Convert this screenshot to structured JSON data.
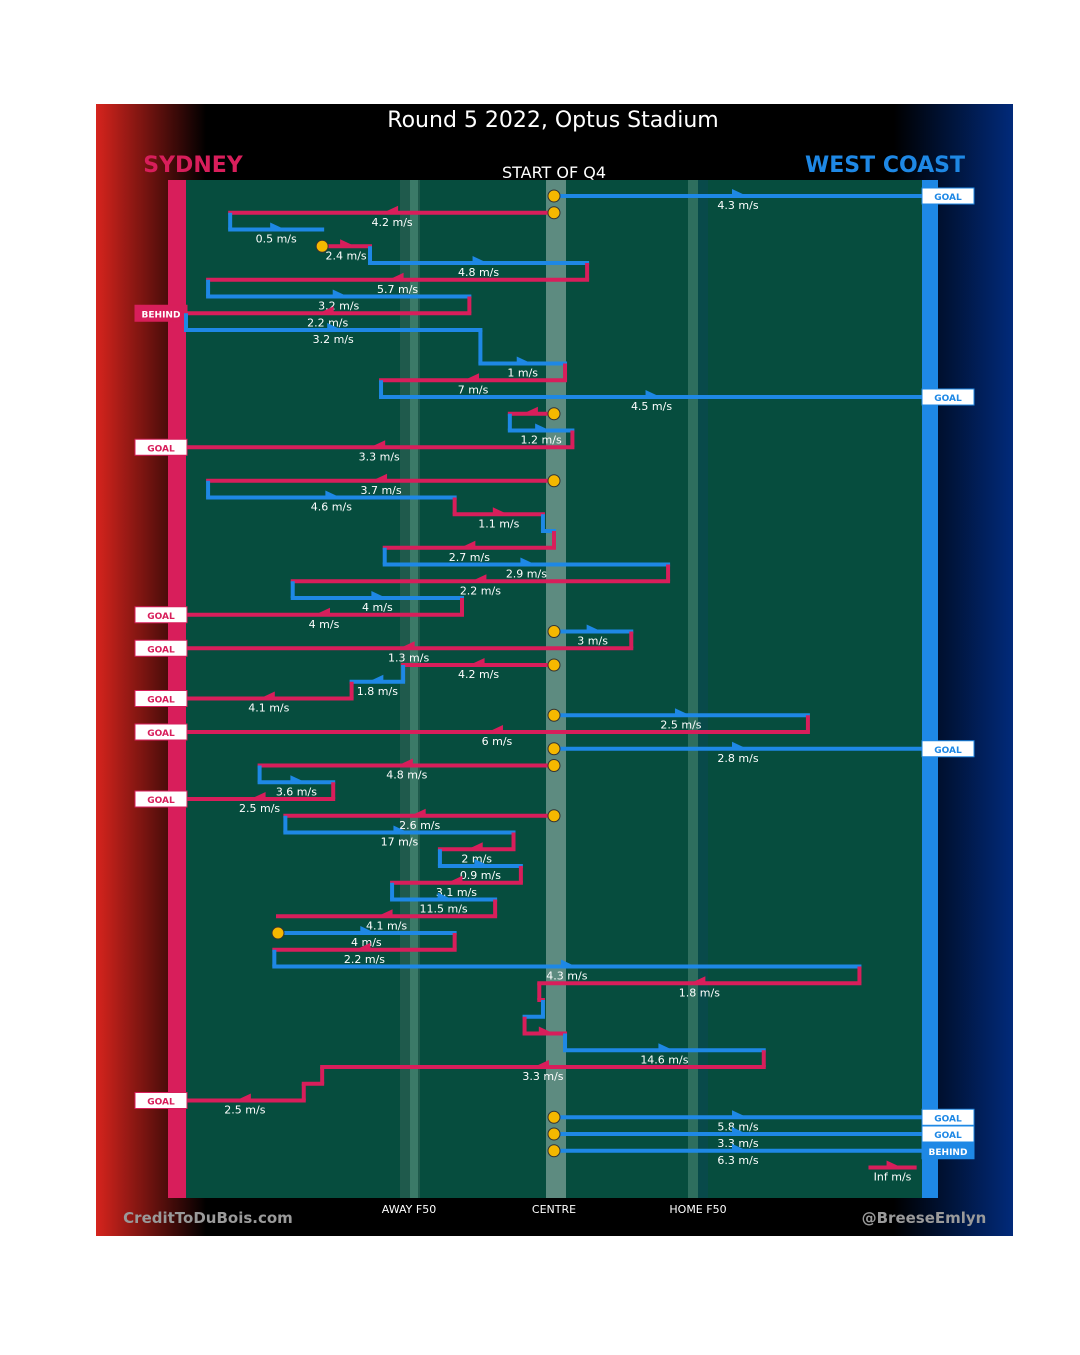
{
  "chart_data": {
    "type": "possession-chain",
    "title": "Round 5 2022, Optus Stadium",
    "subtitle": "START OF Q4",
    "teams": {
      "left": {
        "name": "SYDNEY",
        "color": "#d81e5b"
      },
      "right": {
        "name": "WEST COAST",
        "color": "#1e88e5"
      }
    },
    "axis_labels": [
      "AWAY F50",
      "CENTRE",
      "HOME F50"
    ],
    "credits": {
      "left": "CreditToDuBois.com",
      "right": "@BreeseEmlyn"
    },
    "x_domain": [
      -1,
      1
    ],
    "chains": [
      {
        "team": "west",
        "start": 0,
        "end": 1,
        "row": 1,
        "speed": "4.3 m/s",
        "outcome": "GOAL",
        "bounce": true
      },
      {
        "team": "syd",
        "start": 0,
        "end": -0.88,
        "row": 2,
        "speed": "4.2 m/s",
        "bounce": true
      },
      {
        "team": "west",
        "start": -0.88,
        "end": -0.63,
        "row": 3,
        "speed": "0.5 m/s"
      },
      {
        "team": "syd",
        "start": -0.63,
        "end": -0.5,
        "row": 4,
        "speed": "2.4 m/s",
        "bounce": true
      },
      {
        "team": "west",
        "start": -0.5,
        "end": 0.09,
        "row": 5,
        "speed": "4.8 m/s"
      },
      {
        "team": "syd",
        "start": 0.09,
        "end": -0.94,
        "row": 6,
        "speed": "5.7 m/s"
      },
      {
        "team": "west",
        "start": -0.94,
        "end": -0.23,
        "row": 7,
        "speed": "3.2 m/s"
      },
      {
        "team": "syd",
        "start": -0.23,
        "end": -1,
        "row": 8,
        "speed": "2.2 m/s",
        "outcome": "BEHIND"
      },
      {
        "team": "west",
        "start": -1,
        "end": -0.2,
        "row": 9,
        "speed": "3.2 m/s"
      },
      {
        "team": "west",
        "start": -0.2,
        "end": 0.03,
        "row": 11,
        "speed": "1 m/s"
      },
      {
        "team": "syd",
        "start": 0.03,
        "end": -0.47,
        "row": 12,
        "speed": "7 m/s"
      },
      {
        "team": "west",
        "start": -0.47,
        "end": 1,
        "row": 13,
        "speed": "4.5 m/s",
        "outcome": "GOAL"
      },
      {
        "team": "syd",
        "start": 0,
        "end": -0.12,
        "row": 14,
        "speed": "",
        "bounce": true
      },
      {
        "team": "west",
        "start": -0.12,
        "end": 0.05,
        "row": 15,
        "speed": "1.2 m/s"
      },
      {
        "team": "syd",
        "start": 0.05,
        "end": -1,
        "row": 16,
        "speed": "3.3 m/s",
        "outcome": "GOAL"
      },
      {
        "team": "syd",
        "start": 0,
        "end": -0.94,
        "row": 18,
        "speed": "3.7 m/s",
        "bounce": true
      },
      {
        "team": "west",
        "start": -0.94,
        "end": -0.27,
        "row": 19,
        "speed": "4.6 m/s"
      },
      {
        "team": "syd",
        "start": -0.27,
        "end": -0.03,
        "row": 20,
        "speed": "1.1 m/s"
      },
      {
        "team": "west",
        "start": -0.03,
        "end": 0,
        "row": 21,
        "speed": ""
      },
      {
        "team": "syd",
        "start": 0,
        "end": -0.46,
        "row": 22,
        "speed": "2.7 m/s"
      },
      {
        "team": "west",
        "start": -0.46,
        "end": 0.31,
        "row": 23,
        "speed": "2.9 m/s"
      },
      {
        "team": "syd",
        "start": 0.31,
        "end": -0.71,
        "row": 24,
        "speed": "2.2 m/s"
      },
      {
        "team": "west",
        "start": -0.71,
        "end": -0.25,
        "row": 25,
        "speed": "4 m/s"
      },
      {
        "team": "syd",
        "start": -0.25,
        "end": -1,
        "row": 26,
        "speed": "4 m/s",
        "outcome": "GOAL"
      },
      {
        "team": "west",
        "start": 0,
        "end": 0.21,
        "row": 27,
        "speed": "3 m/s",
        "bounce": true
      },
      {
        "team": "syd",
        "start": 0.21,
        "end": -1,
        "row": 28,
        "speed": "1.3 m/s",
        "outcome": "GOAL"
      },
      {
        "team": "syd",
        "start": 0,
        "end": -0.41,
        "row": 29,
        "speed": "4.2 m/s",
        "bounce": true
      },
      {
        "team": "west",
        "start": -0.41,
        "end": -0.55,
        "row": 30,
        "speed": "1.8 m/s"
      },
      {
        "team": "syd",
        "start": -0.55,
        "end": -1,
        "row": 31,
        "speed": "4.1 m/s",
        "outcome": "GOAL"
      },
      {
        "team": "west",
        "start": 0,
        "end": 0.69,
        "row": 32,
        "speed": "2.5 m/s",
        "bounce": true
      },
      {
        "team": "syd",
        "start": 0.69,
        "end": -1,
        "row": 33,
        "speed": "6 m/s",
        "outcome": "GOAL"
      },
      {
        "team": "west",
        "start": 0,
        "end": 1,
        "row": 34,
        "speed": "2.8 m/s",
        "outcome": "GOAL",
        "bounce": true
      },
      {
        "team": "syd",
        "start": 0,
        "end": -0.8,
        "row": 35,
        "speed": "4.8 m/s",
        "bounce": true
      },
      {
        "team": "west",
        "start": -0.8,
        "end": -0.6,
        "row": 36,
        "speed": "3.6 m/s"
      },
      {
        "team": "syd",
        "start": -0.6,
        "end": -1,
        "row": 37,
        "speed": "2.5 m/s",
        "outcome": "GOAL"
      },
      {
        "team": "syd",
        "start": 0,
        "end": -0.73,
        "row": 38,
        "speed": "2.6 m/s",
        "bounce": true
      },
      {
        "team": "west",
        "start": -0.73,
        "end": -0.11,
        "row": 39,
        "speed": "17 m/s"
      },
      {
        "team": "syd",
        "start": -0.11,
        "end": -0.31,
        "row": 40,
        "speed": "2 m/s"
      },
      {
        "team": "west",
        "start": -0.31,
        "end": -0.09,
        "row": 41,
        "speed": "0.9 m/s"
      },
      {
        "team": "syd",
        "start": -0.09,
        "end": -0.44,
        "row": 42,
        "speed": "3.1 m/s"
      },
      {
        "team": "west",
        "start": -0.44,
        "end": -0.16,
        "row": 43,
        "speed": "11.5 m/s"
      },
      {
        "team": "syd",
        "start": -0.16,
        "end": -0.75,
        "row": 44,
        "speed": "4.1 m/s"
      },
      {
        "team": "west",
        "start": -0.75,
        "end": -0.27,
        "row": 45,
        "speed": "4 m/s",
        "bounce": true
      },
      {
        "team": "syd",
        "start": -0.27,
        "end": -0.76,
        "row": 46,
        "speed": "2.2 m/s"
      },
      {
        "team": "west",
        "start": -0.76,
        "end": 0.83,
        "row": 47,
        "speed": "4.3 m/s"
      },
      {
        "team": "syd",
        "start": 0.83,
        "end": -0.04,
        "row": 48,
        "speed": "1.8 m/s"
      },
      {
        "team": "syd",
        "start": -0.04,
        "end": -0.03,
        "row": 49,
        "speed": ""
      },
      {
        "team": "west",
        "start": -0.03,
        "end": -0.08,
        "row": 50,
        "speed": ""
      },
      {
        "team": "syd",
        "start": -0.08,
        "end": 0.03,
        "row": 51,
        "speed": ""
      },
      {
        "team": "west",
        "start": 0.03,
        "end": 0.57,
        "row": 52,
        "speed": "14.6 m/s"
      },
      {
        "team": "syd",
        "start": 0.57,
        "end": -0.63,
        "row": 53,
        "speed": "3.3 m/s"
      },
      {
        "team": "syd",
        "start": -0.63,
        "end": -0.68,
        "row": 54,
        "speed": ""
      },
      {
        "team": "syd",
        "start": -0.68,
        "end": -1,
        "row": 55,
        "speed": "2.5 m/s",
        "outcome": "GOAL"
      },
      {
        "team": "west",
        "start": 0,
        "end": 1,
        "row": 56,
        "speed": "5.8 m/s",
        "outcome": "GOAL",
        "bounce": true
      },
      {
        "team": "west",
        "start": 0,
        "end": 1,
        "row": 57,
        "speed": "3.3 m/s",
        "outcome": "GOAL",
        "bounce": true
      },
      {
        "team": "west",
        "start": 0,
        "end": 1,
        "row": 58,
        "speed": "6.3 m/s",
        "outcome": "BEHIND",
        "bounce": true
      },
      {
        "team": "syd",
        "start": 0.86,
        "end": 0.98,
        "row": 59,
        "speed": "Inf m/s"
      }
    ]
  }
}
